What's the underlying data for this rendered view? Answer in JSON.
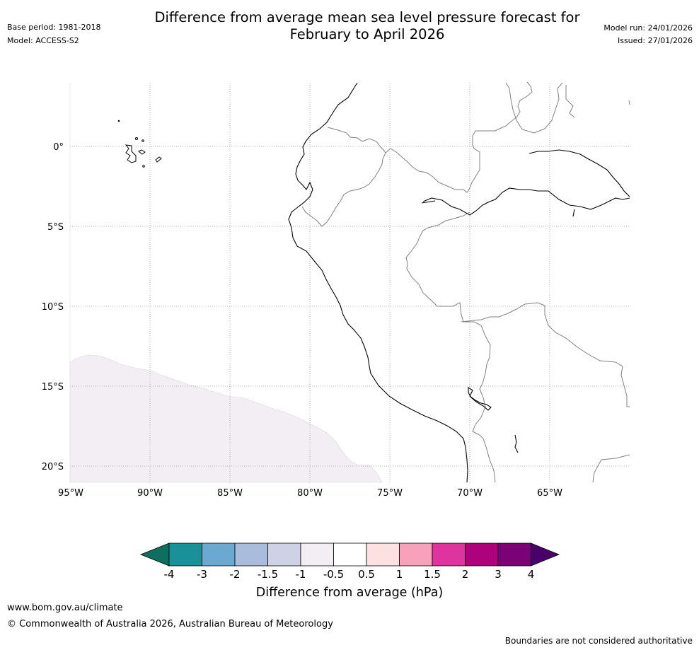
{
  "header": {
    "title_line1": "Difference from average mean sea level pressure forecast for",
    "title_line2": "February to April 2026",
    "base_period": "Base period: 1981-2018",
    "model": "Model: ACCESS-S2",
    "model_run": "Model run: 24/01/2026",
    "issued": "Issued: 27/01/2026"
  },
  "map": {
    "lat_ticks": [
      "0°",
      "5°S",
      "10°S",
      "15°S",
      "20°S"
    ],
    "lon_ticks": [
      "95°W",
      "90°W",
      "85°W",
      "80°W",
      "75°W",
      "70°W",
      "65°W"
    ],
    "anomaly_region": {
      "category": "-1 to -0.5",
      "color": "#f2eef4",
      "location": "south-west Pacific Ocean off Peru"
    }
  },
  "legend": {
    "title": "Difference from average (hPa)",
    "labels": [
      "-4",
      "-3",
      "-2",
      "-1.5",
      "-1",
      "-0.5",
      "0.5",
      "1",
      "1.5",
      "2",
      "3",
      "4"
    ],
    "colors": {
      "below_min": "#0d6f60",
      "bins": [
        "#1a9098",
        "#6aaad2",
        "#a9bcdc",
        "#cfd2e7",
        "#f2eef4",
        "#ffffff",
        "#fde0e0",
        "#f9a0bb",
        "#dd34a0",
        "#ae017e",
        "#7a0177"
      ],
      "above_max": "#49006a"
    }
  },
  "footer": {
    "url": "www.bom.gov.au/climate",
    "copyright": "© Commonwealth of Australia 2026, Australian Bureau of Meteorology",
    "disclaimer": "Boundaries are not considered authoritative"
  }
}
